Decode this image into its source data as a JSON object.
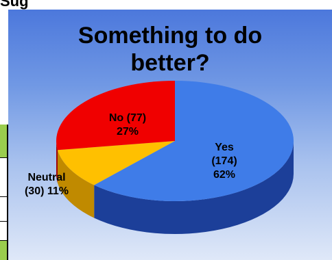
{
  "header": {
    "cut_text": "Sug"
  },
  "chart_data": {
    "type": "pie",
    "title_lines": [
      "Something to do",
      "better?"
    ],
    "slices": [
      {
        "label": "Yes",
        "count": 174,
        "percent": 62,
        "color": "#3f7ce8",
        "side_color": "#1c3f99",
        "label_lines": [
          "Yes",
          "(174)",
          "62%"
        ]
      },
      {
        "label": "Neutral",
        "count": 30,
        "percent": 11,
        "color": "#ffc000",
        "side_color": "#c08a00",
        "label_lines": [
          "Neutral",
          "(30) 11%"
        ]
      },
      {
        "label": "No",
        "count": 77,
        "percent": 27,
        "color": "#f00000",
        "side_color": "#a00000",
        "label_lines": [
          "No (77)",
          "27%"
        ]
      }
    ]
  }
}
